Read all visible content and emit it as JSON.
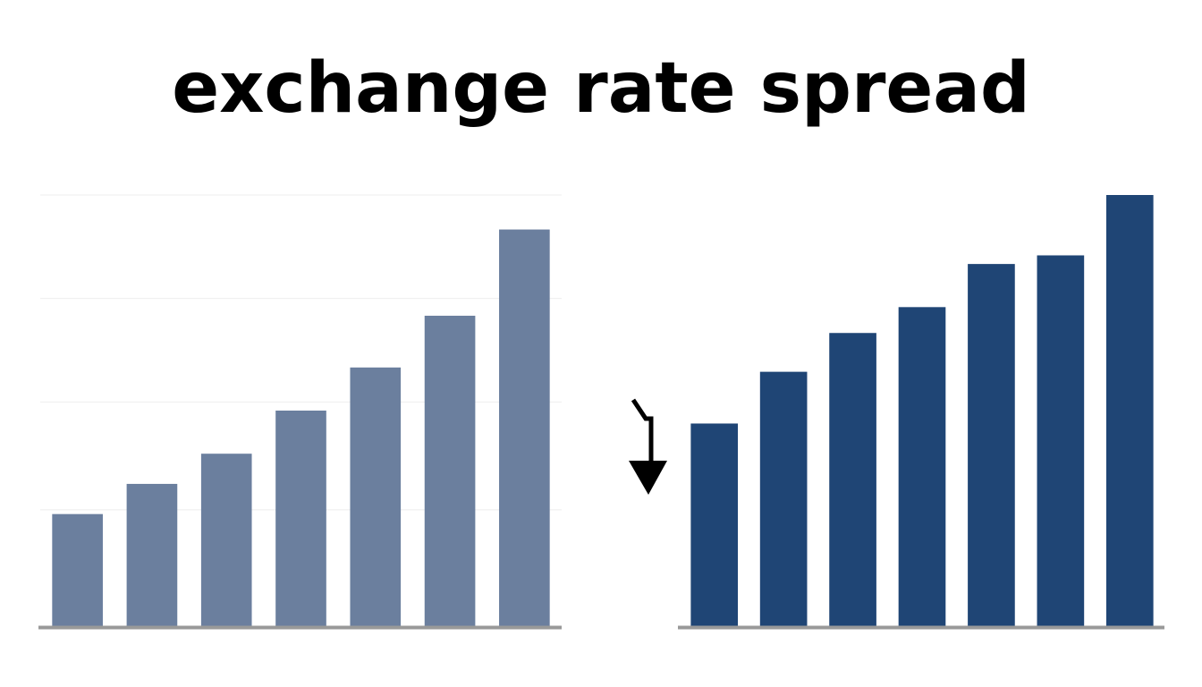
{
  "title": "exchange rate spread",
  "chart_data": [
    {
      "type": "bar",
      "values": [
        26,
        33,
        40,
        50,
        60,
        72,
        92
      ],
      "color": "#6b7f9e",
      "ylim": [
        0,
        100
      ],
      "gridlines": [
        27,
        52,
        76,
        100
      ],
      "grid": true
    },
    {
      "type": "bar",
      "values": [
        47,
        59,
        68,
        74,
        84,
        86,
        100
      ],
      "color": "#1f4575",
      "ylim": [
        0,
        100
      ],
      "grid": false
    }
  ]
}
